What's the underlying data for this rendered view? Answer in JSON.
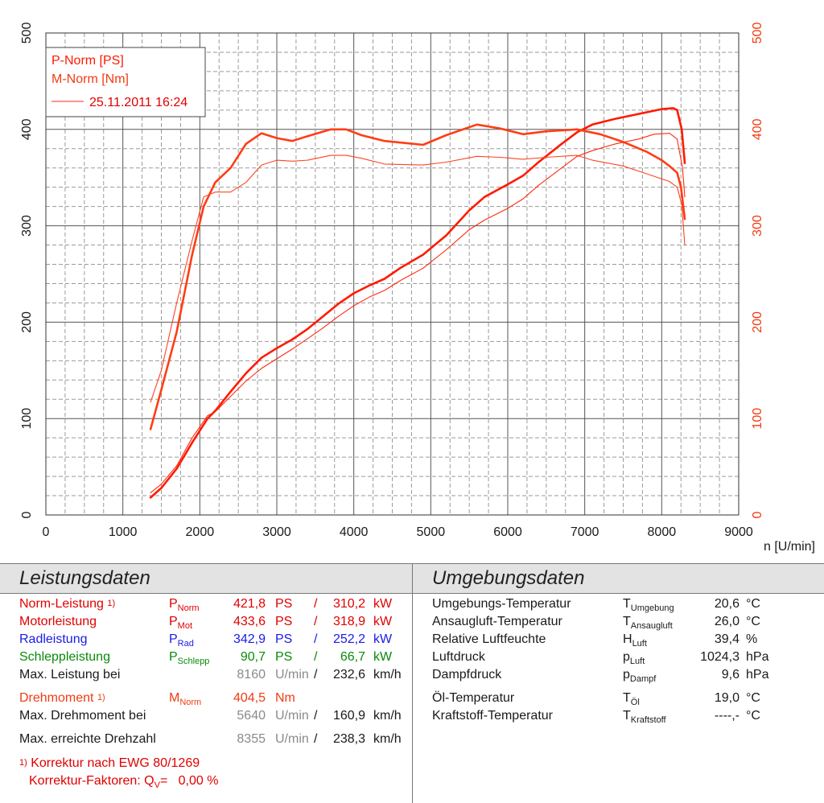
{
  "chart_data": {
    "type": "line",
    "xlabel": "n [U/min]",
    "xlim": [
      0,
      9000
    ],
    "x_ticks": [
      "0",
      "1000",
      "2000",
      "3000",
      "4000",
      "5000",
      "6000",
      "7000",
      "8000",
      "9000"
    ],
    "y_left": {
      "lim": [
        0,
        500
      ],
      "ticks": [
        "0",
        "100",
        "200",
        "300",
        "400",
        "500"
      ]
    },
    "y_right": {
      "lim": [
        0,
        500
      ],
      "ticks": [
        "0",
        "100",
        "200",
        "300",
        "400",
        "500"
      ]
    },
    "grid": true,
    "legend": {
      "placement": "top-left",
      "entries": [
        "P-Norm [PS]",
        "M-Norm [Nm]"
      ],
      "reference_run": "25.11.2011 16:24"
    },
    "colors": {
      "power": "#ff1a00",
      "torque": "#ff3d14",
      "torque_ref": "#ff4422",
      "power_ref": "#ff2a10",
      "grid_major": "#555555",
      "grid_minor": "#9a9a9a"
    },
    "series": [
      {
        "name": "P-Norm [PS]",
        "axis": "left",
        "style": "bold",
        "points": [
          [
            1360,
            18
          ],
          [
            1500,
            28
          ],
          [
            1700,
            48
          ],
          [
            1900,
            75
          ],
          [
            2100,
            100
          ],
          [
            2200,
            108
          ],
          [
            2400,
            128
          ],
          [
            2600,
            147
          ],
          [
            2800,
            163
          ],
          [
            3000,
            173
          ],
          [
            3200,
            182
          ],
          [
            3400,
            193
          ],
          [
            3600,
            206
          ],
          [
            3800,
            219
          ],
          [
            4000,
            230
          ],
          [
            4200,
            238
          ],
          [
            4400,
            245
          ],
          [
            4600,
            256
          ],
          [
            4900,
            270
          ],
          [
            5200,
            290
          ],
          [
            5500,
            316
          ],
          [
            5700,
            330
          ],
          [
            6000,
            343
          ],
          [
            6200,
            352
          ],
          [
            6400,
            366
          ],
          [
            6700,
            385
          ],
          [
            6900,
            397
          ],
          [
            7100,
            405
          ],
          [
            7400,
            411
          ],
          [
            7700,
            416
          ],
          [
            8000,
            421
          ],
          [
            8150,
            422
          ],
          [
            8200,
            420
          ],
          [
            8260,
            400
          ],
          [
            8300,
            365
          ]
        ]
      },
      {
        "name": "M-Norm [Nm]",
        "axis": "right",
        "style": "bold",
        "points": [
          [
            1360,
            89
          ],
          [
            1500,
            130
          ],
          [
            1700,
            190
          ],
          [
            1900,
            270
          ],
          [
            2050,
            320
          ],
          [
            2200,
            345
          ],
          [
            2400,
            360
          ],
          [
            2600,
            385
          ],
          [
            2800,
            396
          ],
          [
            3000,
            391
          ],
          [
            3200,
            388
          ],
          [
            3400,
            393
          ],
          [
            3700,
            400
          ],
          [
            3900,
            400
          ],
          [
            4100,
            394
          ],
          [
            4400,
            388
          ],
          [
            4900,
            384
          ],
          [
            5200,
            394
          ],
          [
            5600,
            405
          ],
          [
            5900,
            401
          ],
          [
            6200,
            395
          ],
          [
            6500,
            398
          ],
          [
            6900,
            400
          ],
          [
            7200,
            395
          ],
          [
            7500,
            387
          ],
          [
            7800,
            377
          ],
          [
            8000,
            368
          ],
          [
            8100,
            362
          ],
          [
            8200,
            355
          ],
          [
            8250,
            340
          ],
          [
            8300,
            307
          ]
        ]
      },
      {
        "name": "25.11.2011 16:24 M-Norm [Nm]",
        "axis": "right",
        "style": "thin",
        "points": [
          [
            1360,
            117
          ],
          [
            1500,
            150
          ],
          [
            1700,
            220
          ],
          [
            1900,
            285
          ],
          [
            2050,
            330
          ],
          [
            2200,
            335
          ],
          [
            2400,
            335
          ],
          [
            2600,
            345
          ],
          [
            2800,
            363
          ],
          [
            3000,
            368
          ],
          [
            3200,
            367
          ],
          [
            3400,
            368
          ],
          [
            3700,
            373
          ],
          [
            3900,
            373
          ],
          [
            4100,
            370
          ],
          [
            4400,
            364
          ],
          [
            4900,
            363
          ],
          [
            5200,
            366
          ],
          [
            5600,
            372
          ],
          [
            5900,
            371
          ],
          [
            6200,
            369
          ],
          [
            6500,
            371
          ],
          [
            6900,
            373
          ],
          [
            7100,
            368
          ],
          [
            7500,
            362
          ],
          [
            7800,
            354
          ],
          [
            8100,
            346
          ],
          [
            8200,
            340
          ],
          [
            8260,
            322
          ],
          [
            8300,
            280
          ]
        ]
      },
      {
        "name": "25.11.2011 16:24 P-Norm [PS]",
        "axis": "left",
        "style": "thin",
        "points": [
          [
            1360,
            23
          ],
          [
            1500,
            32
          ],
          [
            1700,
            51
          ],
          [
            1900,
            80
          ],
          [
            2100,
            103
          ],
          [
            2200,
            107
          ],
          [
            2400,
            123
          ],
          [
            2600,
            139
          ],
          [
            2800,
            152
          ],
          [
            3000,
            162
          ],
          [
            3200,
            172
          ],
          [
            3400,
            183
          ],
          [
            3600,
            194
          ],
          [
            3800,
            206
          ],
          [
            4000,
            217
          ],
          [
            4200,
            226
          ],
          [
            4400,
            233
          ],
          [
            4600,
            243
          ],
          [
            4900,
            256
          ],
          [
            5200,
            275
          ],
          [
            5500,
            296
          ],
          [
            5700,
            306
          ],
          [
            6000,
            318
          ],
          [
            6200,
            328
          ],
          [
            6400,
            342
          ],
          [
            6700,
            360
          ],
          [
            6900,
            372
          ],
          [
            7100,
            378
          ],
          [
            7400,
            385
          ],
          [
            7700,
            390
          ],
          [
            7900,
            395
          ],
          [
            8100,
            396
          ],
          [
            8200,
            390
          ],
          [
            8270,
            360
          ],
          [
            8300,
            330
          ]
        ]
      }
    ]
  },
  "leistungsdaten": {
    "title": "Leistungsdaten",
    "norm": {
      "label": "Norm-Leistung",
      "mark": "1)",
      "sym": "P",
      "sub": "Norm",
      "v1": "421,8",
      "u1": "PS",
      "sep": "/",
      "v2": "310,2",
      "u2": "kW"
    },
    "motor": {
      "label": "Motorleistung",
      "sym": "P",
      "sub": "Mot",
      "v1": "433,6",
      "u1": "PS",
      "sep": "/",
      "v2": "318,9",
      "u2": "kW"
    },
    "rad": {
      "label": "Radleistung",
      "sym": "P",
      "sub": "Rad",
      "v1": "342,9",
      "u1": "PS",
      "sep": "/",
      "v2": "252,2",
      "u2": "kW"
    },
    "schlepp": {
      "label": "Schleppleistung",
      "sym": "P",
      "sub": "Schlepp",
      "v1": "90,7",
      "u1": "PS",
      "sep": "/",
      "v2": "66,7",
      "u2": "kW"
    },
    "maxleistung": {
      "label": "Max. Leistung bei",
      "v1": "8160",
      "u1": "U/min",
      "sep": "/",
      "v2": "232,6",
      "u2": "km/h"
    },
    "drehmoment": {
      "label": "Drehmoment",
      "mark": "1)",
      "sym": "M",
      "sub": "Norm",
      "v1": "404,5",
      "u1": "Nm"
    },
    "maxdreh": {
      "label": "Max. Drehmoment bei",
      "v1": "5640",
      "u1": "U/min",
      "sep": "/",
      "v2": "160,9",
      "u2": "km/h"
    },
    "maxdrehzahl": {
      "label": "Max. erreichte Drehzahl",
      "v1": "8355",
      "u1": "U/min",
      "sep": "/",
      "v2": "238,3",
      "u2": "km/h"
    },
    "footnote": {
      "mark": "1)",
      "line1": "Korrektur nach EWG 80/1269",
      "line2_label": "Korrektur-Faktoren: Q",
      "line2_sub": "V",
      "line2_value": "=   0,00 %"
    }
  },
  "umgebungsdaten": {
    "title": "Umgebungsdaten",
    "rows": [
      {
        "label": "Umgebungs-Temperatur",
        "sym": "T",
        "sub": "Umgebung",
        "value": "20,6",
        "unit": "°C"
      },
      {
        "label": "Ansaugluft-Temperatur",
        "sym": "T",
        "sub": "Ansaugluft",
        "value": "26,0",
        "unit": "°C"
      },
      {
        "label": "Relative Luftfeuchte",
        "sym": "H",
        "sub": "Luft",
        "value": "39,4",
        "unit": "%"
      },
      {
        "label": "Luftdruck",
        "sym": "p",
        "sub": "Luft",
        "value": "1024,3",
        "unit": "hPa"
      },
      {
        "label": "Dampfdruck",
        "sym": "p",
        "sub": "Dampf",
        "value": "9,6",
        "unit": "hPa"
      },
      {
        "label": "Öl-Temperatur",
        "sym": "T",
        "sub": "Öl",
        "value": "19,0",
        "unit": "°C"
      },
      {
        "label": "Kraftstoff-Temperatur",
        "sym": "T",
        "sub": "Kraftstoff",
        "value": "----,-",
        "unit": "°C"
      }
    ]
  }
}
